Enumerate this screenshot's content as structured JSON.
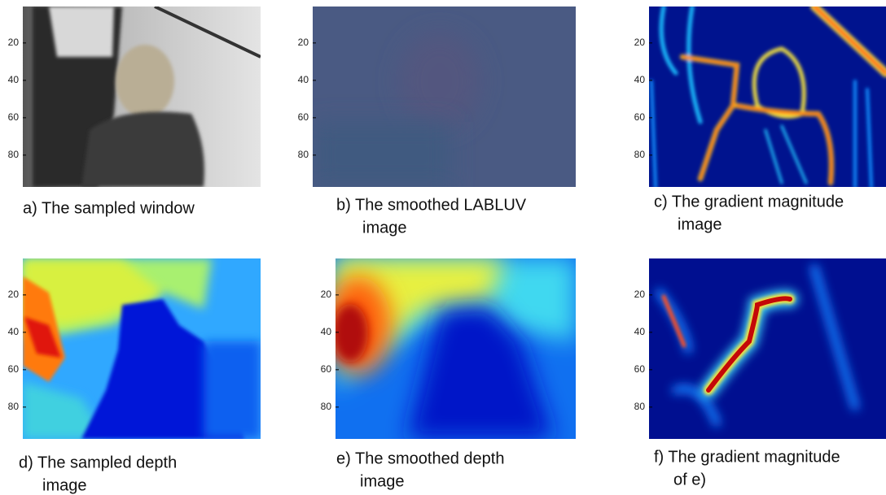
{
  "panels": [
    {
      "caption": [
        "a) The sampled window"
      ],
      "yticks": [
        20,
        40,
        60,
        80
      ]
    },
    {
      "caption": [
        "b) The smoothed LABLUV",
        "image"
      ],
      "yticks": [
        20,
        40,
        60,
        80
      ]
    },
    {
      "caption": [
        "c) The gradient magnitude",
        "image"
      ],
      "yticks": [
        20,
        40,
        60,
        80
      ]
    },
    {
      "caption": [
        "d) The sampled depth",
        "image"
      ],
      "yticks": [
        20,
        40,
        60,
        80
      ]
    },
    {
      "caption": [
        "e) The smoothed depth",
        "image"
      ],
      "yticks": [
        20,
        40,
        60,
        80
      ]
    },
    {
      "caption": [
        "f) The gradient magnitude",
        "of e)"
      ],
      "yticks": [
        20,
        40,
        60,
        80
      ]
    }
  ]
}
